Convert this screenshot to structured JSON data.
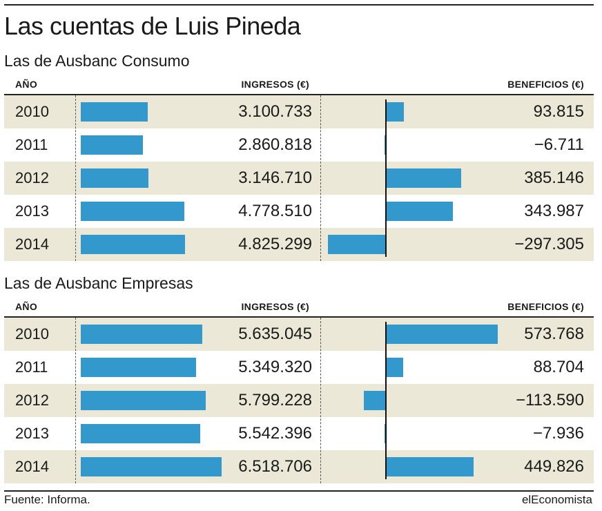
{
  "title": "Las cuentas de Luis Pineda",
  "headers": {
    "year": "AÑO",
    "ingresos": "INGRESOS (€)",
    "beneficios": "BENEFICIOS (€)"
  },
  "footer": {
    "source": "Fuente: Informa.",
    "brand": "elEconomista"
  },
  "colors": {
    "bar": "#3399cc",
    "shade": "#ebe8d7"
  },
  "chart_data": [
    {
      "type": "bar",
      "title": "Las de Ausbanc Consumo",
      "categories": [
        "2010",
        "2011",
        "2012",
        "2013",
        "2014"
      ],
      "series": [
        {
          "name": "INGRESOS (€)",
          "values": [
            3100733,
            2860818,
            3146710,
            4778510,
            4825299
          ],
          "labels": [
            "3.100.733",
            "2.860.818",
            "3.146.710",
            "4.778.510",
            "4.825.299"
          ]
        },
        {
          "name": "BENEFICIOS (€)",
          "values": [
            93815,
            -6711,
            385146,
            343987,
            -297305
          ],
          "labels": [
            "93.815",
            "−6.711",
            "385.146",
            "343.987",
            "−297.305"
          ]
        }
      ]
    },
    {
      "type": "bar",
      "title": "Las de Ausbanc Empresas",
      "categories": [
        "2010",
        "2011",
        "2012",
        "2013",
        "2014"
      ],
      "series": [
        {
          "name": "INGRESOS (€)",
          "values": [
            5635045,
            5349320,
            5799228,
            5542396,
            6518706
          ],
          "labels": [
            "5.635.045",
            "5.349.320",
            "5.799.228",
            "5.542.396",
            "6.518.706"
          ]
        },
        {
          "name": "BENEFICIOS (€)",
          "values": [
            573768,
            88704,
            -113590,
            -7936,
            449826
          ],
          "labels": [
            "573.768",
            "88.704",
            "−113.590",
            "−7.936",
            "449.826"
          ]
        }
      ]
    }
  ]
}
